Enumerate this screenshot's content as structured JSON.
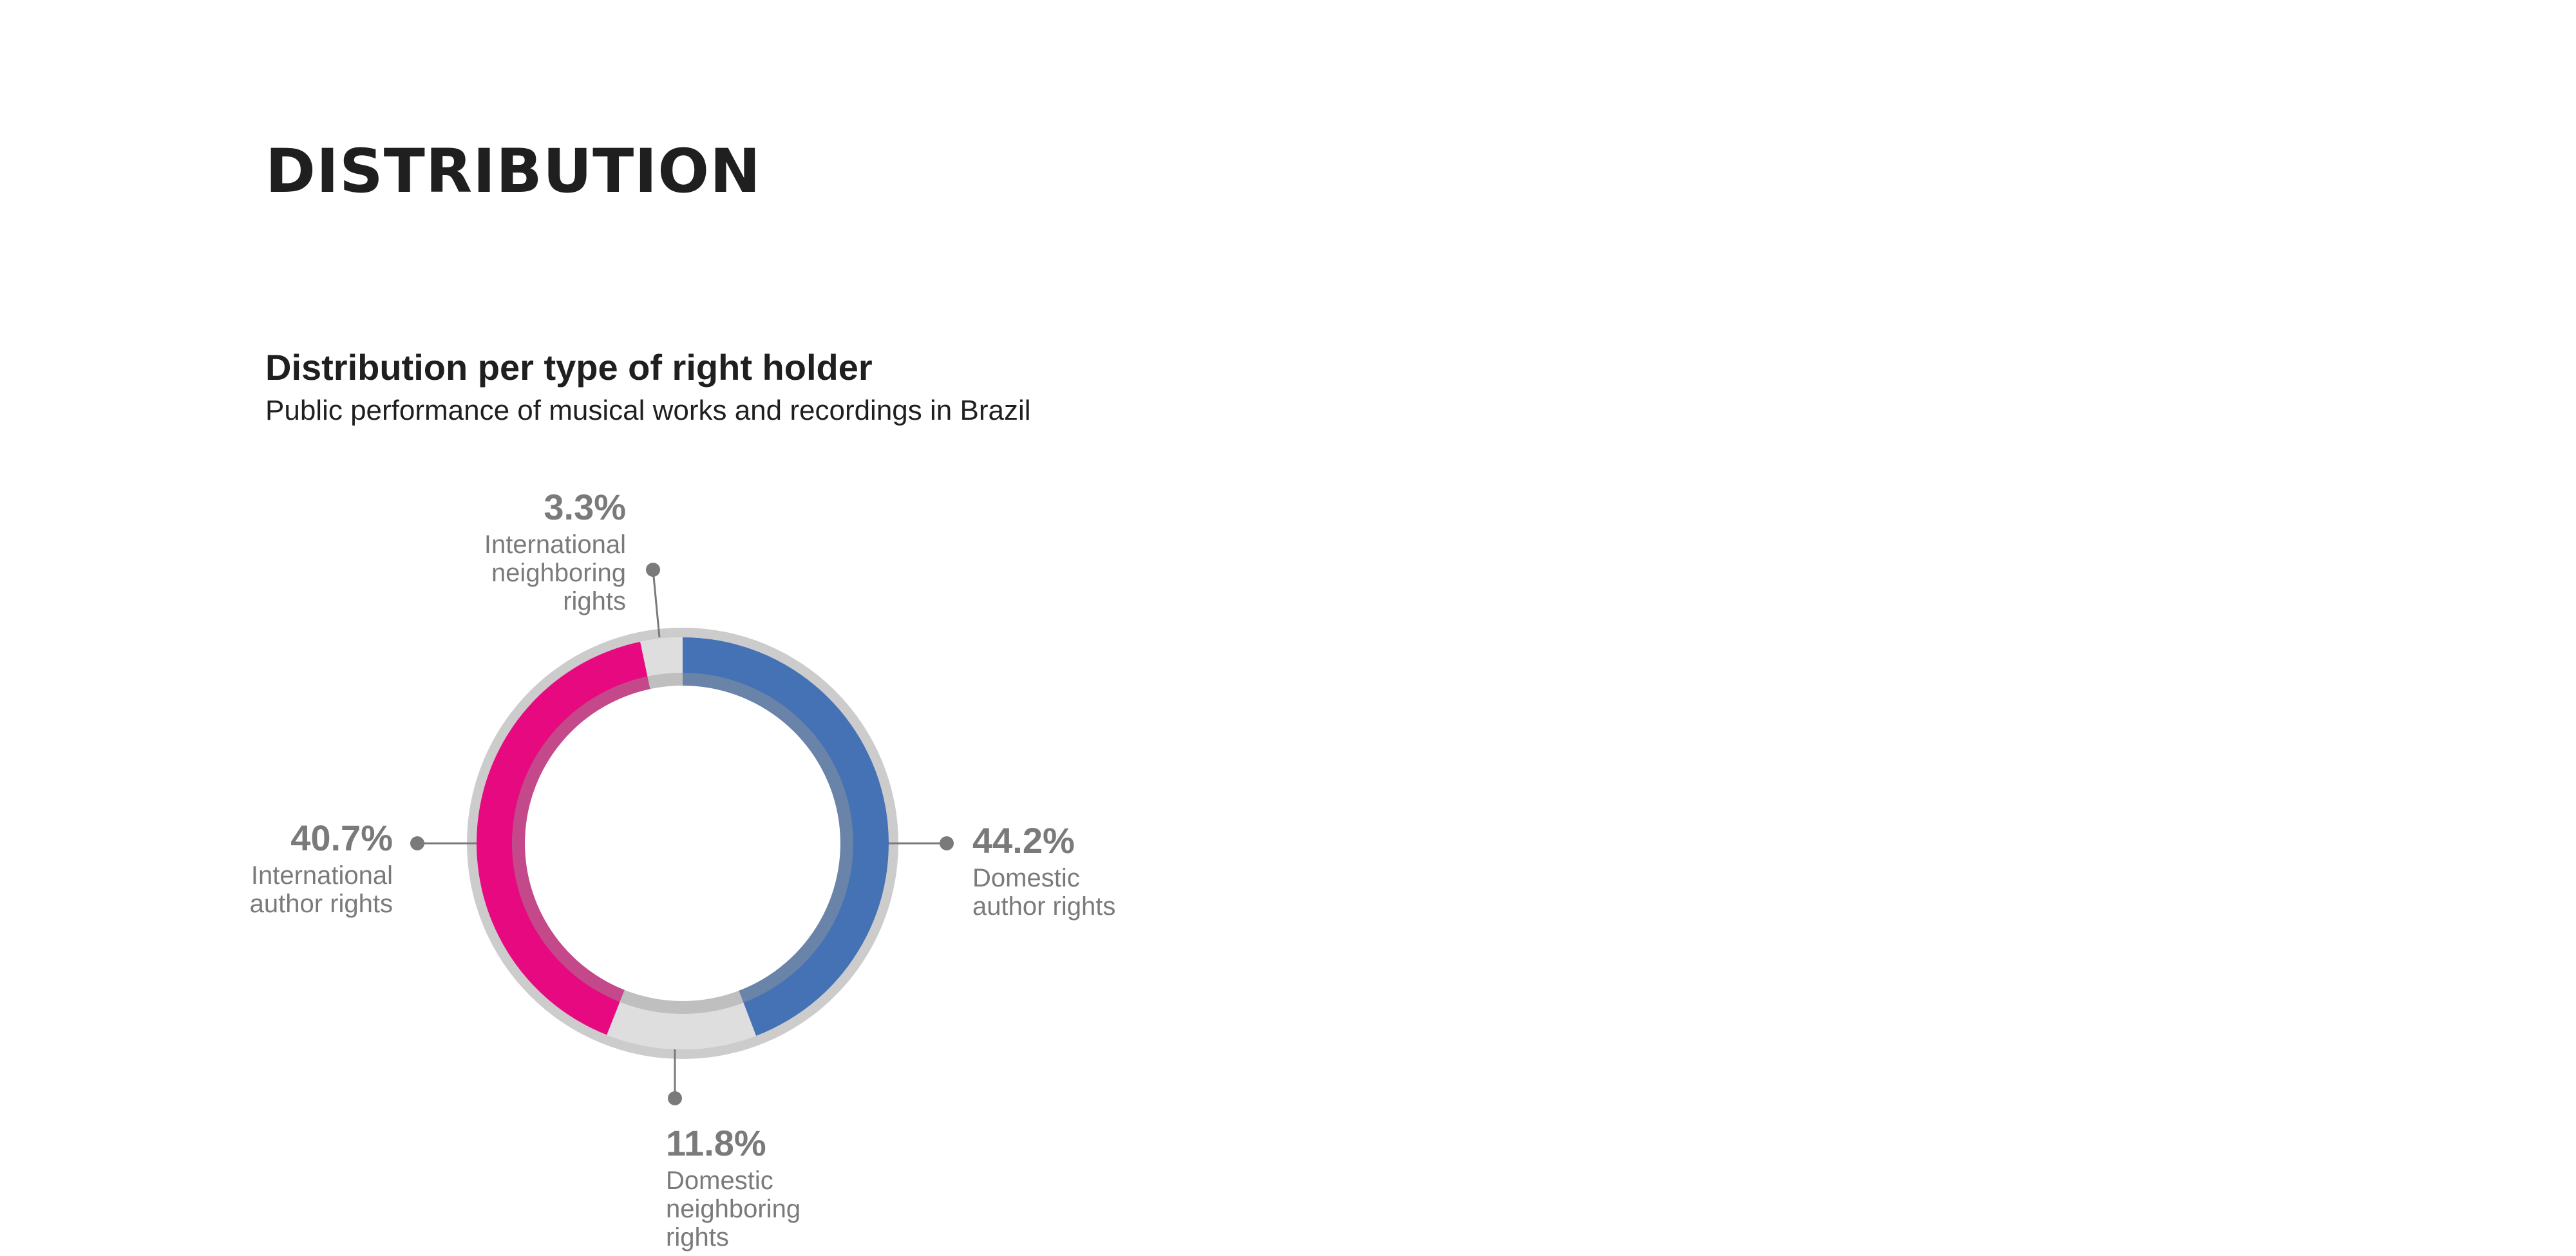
{
  "page": {
    "title": "DISTRIBUTION"
  },
  "chart": {
    "title": "Distribution per type of right holder",
    "subtitle": "Public performance of musical works and recordings in Brazil"
  },
  "chart_data": {
    "type": "pie",
    "title": "Distribution per type of right holder",
    "subtitle": "Public performance of musical works and recordings in Brazil",
    "slices": [
      {
        "label": "Domestic author rights",
        "value": 44.2,
        "value_label": "44.2%",
        "color": "#4472b4"
      },
      {
        "label": "Domestic neighboring rights",
        "value": 11.8,
        "value_label": "11.8%",
        "color": "#dedede"
      },
      {
        "label": "International author rights",
        "value": 40.7,
        "value_label": "40.7%",
        "color": "#e6097f"
      },
      {
        "label": "International neighboring rights",
        "value": 3.3,
        "value_label": "3.3%",
        "color": "#dedede"
      }
    ],
    "labels": {
      "domestic_author": {
        "pct": "44.2%",
        "name": "Domestic\nauthor rights"
      },
      "domestic_neighboring": {
        "pct": "11.8%",
        "name": "Domestic\nneighboring\nrights"
      },
      "international_author": {
        "pct": "40.7%",
        "name": "International\nauthor rights"
      },
      "international_neighboring": {
        "pct": "3.3%",
        "name": "International\nneighboring\nrights"
      }
    },
    "legend": "none",
    "colors": {
      "ring_outline": "#cccccc",
      "inner_shadow": "#9a9a9a",
      "leader": "#7a7a7a"
    }
  }
}
